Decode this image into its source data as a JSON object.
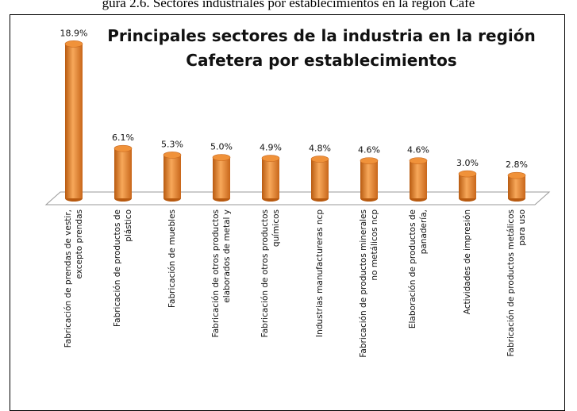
{
  "caption": "gura 2.6. Sectores industriales por establecimientos en la región Cafe",
  "chart_data": {
    "type": "bar3d",
    "title": "Principales sectores de la industria en la región\nCafetera por establecimientos",
    "categories": [
      "Fabricación de prendas de vestir,\nexcepto prendas",
      "Fabricación de productos de\nplástico",
      "Fabricación de muebles",
      "Fabricación de otros productos\nelaborados de metal y",
      "Fabricación de otros productos\nquímicos",
      "Industrias manufactureras ncp",
      "Fabricación de productos minerales\nno metálicos ncp",
      "Elaboración de productos de\npanadería,",
      "Actividades de impresión",
      "Fabricación de productos metálicos\npara uso"
    ],
    "values": [
      18.9,
      6.1,
      5.3,
      5.0,
      4.9,
      4.8,
      4.6,
      4.6,
      3.0,
      2.8
    ],
    "value_labels": [
      "18.9%",
      "6.1%",
      "5.3%",
      "5.0%",
      "4.9%",
      "4.8%",
      "4.6%",
      "4.6%",
      "3.0%",
      "2.8%"
    ],
    "color": "#f0923a"
  }
}
